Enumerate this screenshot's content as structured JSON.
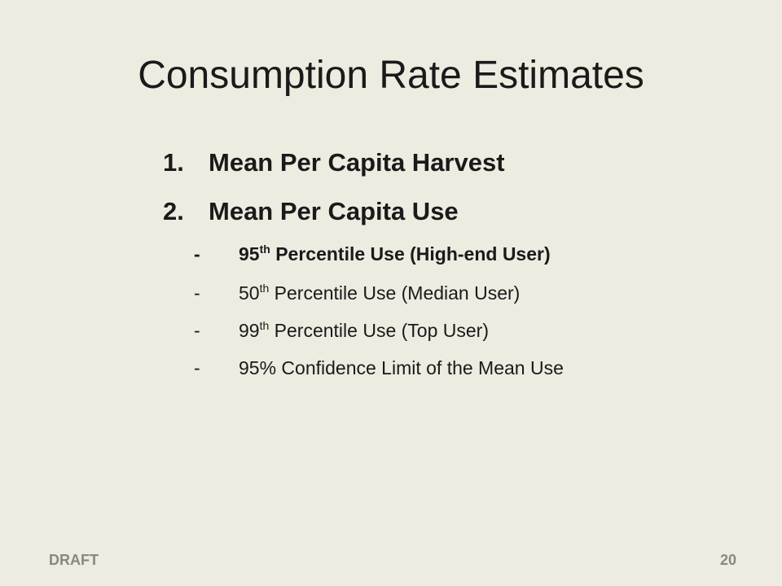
{
  "slide": {
    "title": "Consumption Rate Estimates",
    "numbered_items": [
      {
        "marker": "1.",
        "text": "Mean Per Capita Harvest"
      },
      {
        "marker": "2.",
        "text": "Mean Per Capita Use"
      }
    ],
    "sub_items": [
      {
        "dash": "-",
        "num": "95",
        "sup": "th",
        "text": " Percentile Use (High-end User)",
        "bold": true
      },
      {
        "dash": "-",
        "num": "50",
        "sup": "th",
        "text": " Percentile Use (Median User)",
        "bold": false
      },
      {
        "dash": "-",
        "num": "99",
        "sup": "th",
        "text": " Percentile Use (Top User)",
        "bold": false
      },
      {
        "dash": "-",
        "num": "95% Confidence Limit of the Mean Use",
        "sup": "",
        "text": "",
        "bold": false
      }
    ],
    "footer_left": "DRAFT",
    "page_number": "20"
  },
  "colors": {
    "background": "#eeebe1",
    "text": "#1a1a1a",
    "footer": "#8a8780"
  }
}
